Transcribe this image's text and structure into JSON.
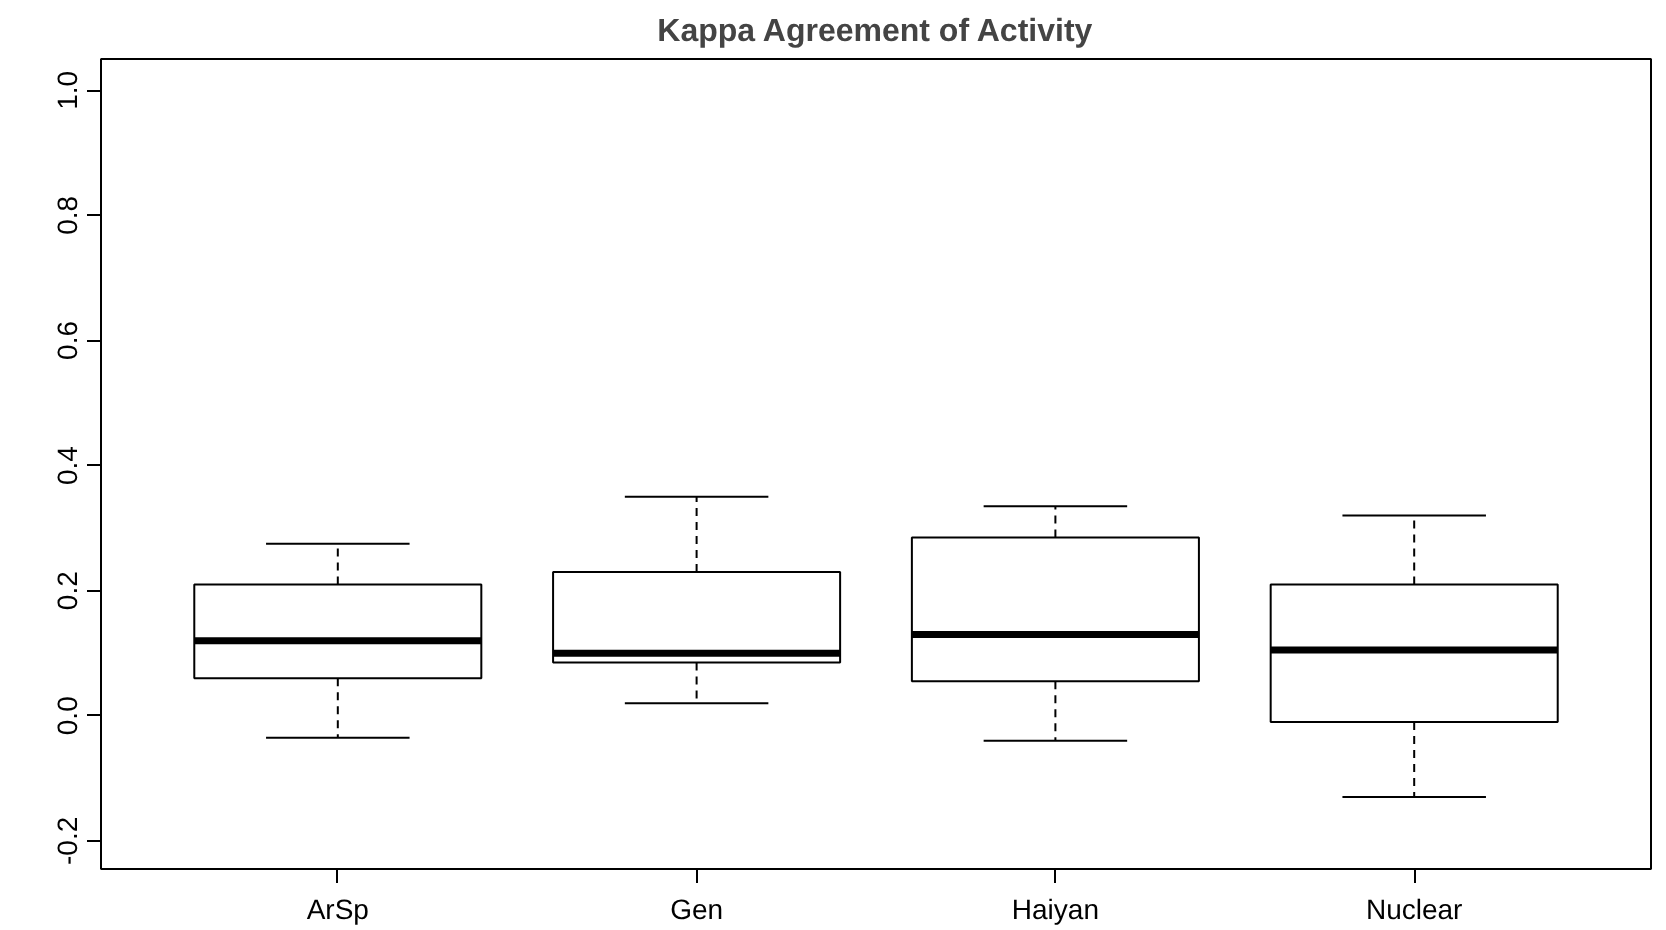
{
  "chart_data": {
    "type": "box",
    "title": "Kappa Agreement of Activity",
    "categories": [
      "ArSp",
      "Gen",
      "Haiyan",
      "Nuclear"
    ],
    "boxes": [
      {
        "low": -0.035,
        "q1": 0.06,
        "median": 0.12,
        "q3": 0.21,
        "high": 0.275
      },
      {
        "low": 0.02,
        "q1": 0.085,
        "median": 0.1,
        "q3": 0.23,
        "high": 0.35
      },
      {
        "low": -0.04,
        "q1": 0.055,
        "median": 0.13,
        "q3": 0.285,
        "high": 0.335
      },
      {
        "low": -0.13,
        "q1": -0.01,
        "median": 0.105,
        "q3": 0.21,
        "high": 0.32
      }
    ],
    "ylim": [
      -0.245,
      1.05
    ],
    "yticks": [
      {
        "value": -0.2,
        "label": "-0.2"
      },
      {
        "value": 0,
        "label": "0.0"
      },
      {
        "value": 0.2,
        "label": "0.2"
      },
      {
        "value": 0.4,
        "label": "0.4"
      },
      {
        "value": 0.6,
        "label": "0.6"
      },
      {
        "value": 0.8,
        "label": "0.8"
      },
      {
        "value": 1,
        "label": "1.0"
      }
    ],
    "grid": false
  }
}
